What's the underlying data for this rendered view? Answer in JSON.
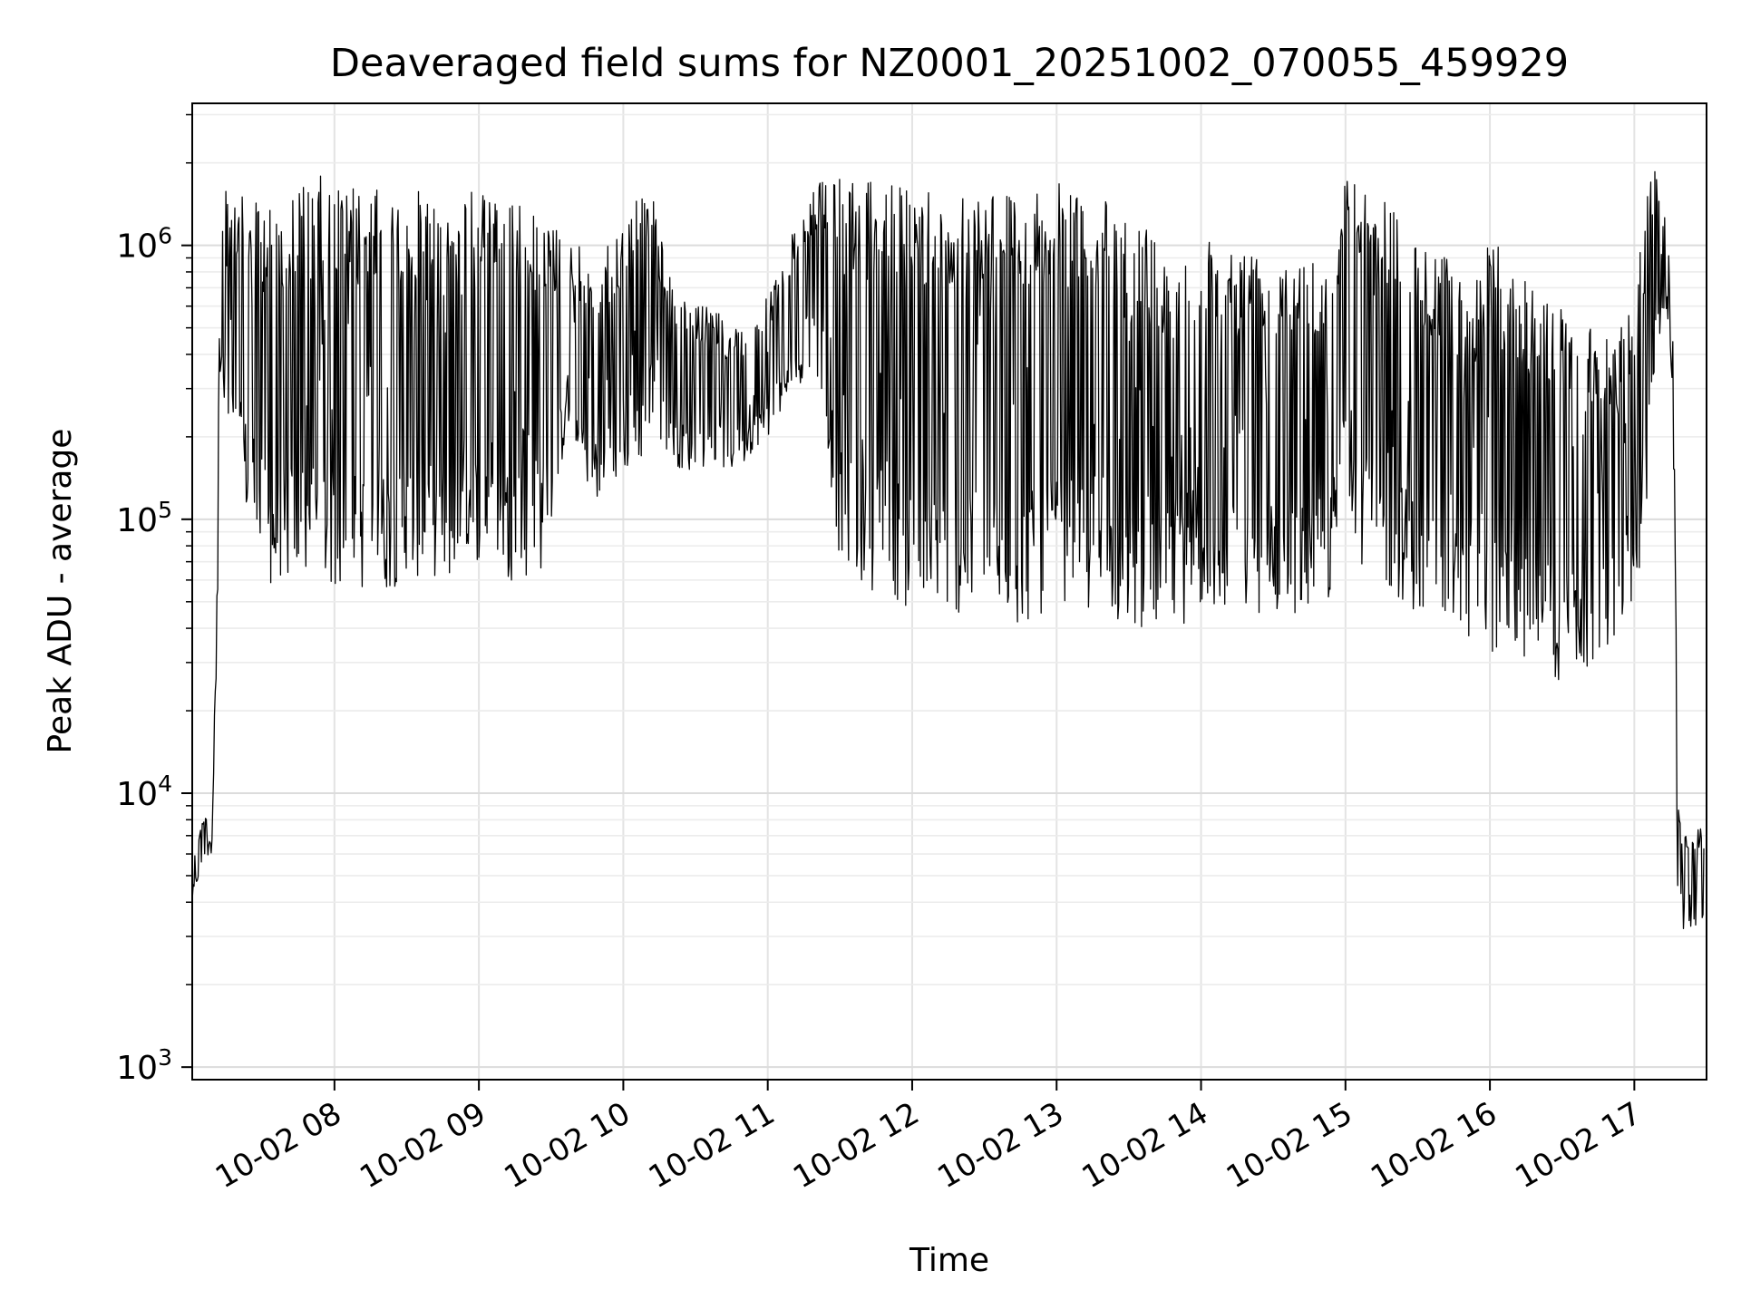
{
  "chart_data": {
    "type": "line",
    "title": "Deaveraged field sums for NZ0001_20251002_070055_459929",
    "xlabel": "Time",
    "ylabel": "Peak ADU - average",
    "yscale": "log",
    "ylim": [
      900,
      3300000
    ],
    "xlim": [
      "2025-10-02 07:00:55",
      "2025-10-02 17:30:00"
    ],
    "grid": true,
    "legend": "none",
    "line_color": "#000000",
    "x_tick_labels": [
      "10-02 08",
      "10-02 09",
      "10-02 10",
      "10-02 11",
      "10-02 12",
      "10-02 13",
      "10-02 14",
      "10-02 15",
      "10-02 16",
      "10-02 17"
    ],
    "x_tick_values": [
      "2025-10-02 08:00",
      "2025-10-02 09:00",
      "2025-10-02 10:00",
      "2025-10-02 11:00",
      "2025-10-02 12:00",
      "2025-10-02 13:00",
      "2025-10-02 14:00",
      "2025-10-02 15:00",
      "2025-10-02 16:00",
      "2025-10-02 17:00"
    ],
    "y_tick_labels": [
      {
        "base": "10",
        "exp": "3",
        "value": 1000
      },
      {
        "base": "10",
        "exp": "4",
        "value": 10000
      },
      {
        "base": "10",
        "exp": "5",
        "value": 100000
      },
      {
        "base": "10",
        "exp": "6",
        "value": 1000000
      }
    ],
    "series": [
      {
        "x": [
          "2025-10-02 07:01",
          "2025-10-02 07:05",
          "2025-10-02 07:09",
          "2025-10-02 07:11",
          "2025-10-02 07:12",
          "2025-10-02 07:13",
          "2025-10-02 07:15",
          "2025-10-02 07:18",
          "2025-10-02 07:22",
          "2025-10-02 07:26",
          "2025-10-02 07:30",
          "2025-10-02 07:36",
          "2025-10-02 07:42",
          "2025-10-02 07:48",
          "2025-10-02 07:54",
          "2025-10-02 08:00",
          "2025-10-02 08:06",
          "2025-10-02 08:12",
          "2025-10-02 08:18",
          "2025-10-02 08:24",
          "2025-10-02 08:30",
          "2025-10-02 08:36",
          "2025-10-02 08:42",
          "2025-10-02 08:48",
          "2025-10-02 08:54",
          "2025-10-02 09:00",
          "2025-10-02 09:06",
          "2025-10-02 09:12",
          "2025-10-02 09:18",
          "2025-10-02 09:24",
          "2025-10-02 09:30",
          "2025-10-02 09:36",
          "2025-10-02 09:42",
          "2025-10-02 09:48",
          "2025-10-02 09:54",
          "2025-10-02 10:00",
          "2025-10-02 10:06",
          "2025-10-02 10:12",
          "2025-10-02 10:18",
          "2025-10-02 10:24",
          "2025-10-02 10:30",
          "2025-10-02 10:36",
          "2025-10-02 10:42",
          "2025-10-02 10:48",
          "2025-10-02 10:54",
          "2025-10-02 11:00",
          "2025-10-02 11:06",
          "2025-10-02 11:12",
          "2025-10-02 11:18",
          "2025-10-02 11:24",
          "2025-10-02 11:30",
          "2025-10-02 11:36",
          "2025-10-02 11:42",
          "2025-10-02 11:48",
          "2025-10-02 11:54",
          "2025-10-02 12:00",
          "2025-10-02 12:06",
          "2025-10-02 12:12",
          "2025-10-02 12:18",
          "2025-10-02 12:24",
          "2025-10-02 12:30",
          "2025-10-02 12:36",
          "2025-10-02 12:42",
          "2025-10-02 12:48",
          "2025-10-02 12:54",
          "2025-10-02 13:00",
          "2025-10-02 13:06",
          "2025-10-02 13:12",
          "2025-10-02 13:18",
          "2025-10-02 13:24",
          "2025-10-02 13:30",
          "2025-10-02 13:36",
          "2025-10-02 13:42",
          "2025-10-02 13:48",
          "2025-10-02 13:54",
          "2025-10-02 14:00",
          "2025-10-02 14:06",
          "2025-10-02 14:12",
          "2025-10-02 14:18",
          "2025-10-02 14:24",
          "2025-10-02 14:30",
          "2025-10-02 14:36",
          "2025-10-02 14:42",
          "2025-10-02 14:48",
          "2025-10-02 14:54",
          "2025-10-02 15:00",
          "2025-10-02 15:06",
          "2025-10-02 15:12",
          "2025-10-02 15:18",
          "2025-10-02 15:24",
          "2025-10-02 15:30",
          "2025-10-02 15:36",
          "2025-10-02 15:42",
          "2025-10-02 15:48",
          "2025-10-02 15:54",
          "2025-10-02 16:00",
          "2025-10-02 16:06",
          "2025-10-02 16:12",
          "2025-10-02 16:18",
          "2025-10-02 16:24",
          "2025-10-02 16:30",
          "2025-10-02 16:36",
          "2025-10-02 16:42",
          "2025-10-02 16:48",
          "2025-10-02 16:54",
          "2025-10-02 17:00",
          "2025-10-02 17:04",
          "2025-10-02 17:08",
          "2025-10-02 17:12",
          "2025-10-02 17:14",
          "2025-10-02 17:16",
          "2025-10-02 17:18",
          "2025-10-02 17:20",
          "2025-10-02 17:24",
          "2025-10-02 17:29"
        ],
        "hi": [
          6000,
          8000,
          9000,
          35000,
          400000,
          1200000,
          2200000,
          1600000,
          1500000,
          1400000,
          1500000,
          1500000,
          1600000,
          1700000,
          1800000,
          1700000,
          1700000,
          1600000,
          1600000,
          1500000,
          1500000,
          1600000,
          1500000,
          1600000,
          1500000,
          1700000,
          1800000,
          1500000,
          1400000,
          1300000,
          1200000,
          1100000,
          1000000,
          900000,
          1000000,
          1200000,
          1600000,
          1800000,
          800000,
          700000,
          600000,
          600000,
          550000,
          500000,
          550000,
          700000,
          900000,
          1200000,
          1500000,
          1900000,
          1800000,
          1700000,
          1700000,
          1700000,
          1700000,
          1600000,
          1700000,
          1600000,
          1600000,
          1700000,
          1700000,
          1700000,
          1600000,
          1600000,
          1700000,
          1700000,
          1600000,
          1700000,
          1700000,
          1200000,
          1300000,
          1200000,
          1100000,
          1000000,
          1000000,
          1100000,
          1100000,
          1000000,
          1000000,
          1000000,
          1000000,
          1000000,
          1000000,
          1000000,
          1000000,
          1800000,
          1700000,
          1600000,
          1500000,
          1400000,
          1100000,
          1000000,
          900000,
          800000,
          800000,
          1200000,
          900000,
          800000,
          700000,
          650000,
          600000,
          500000,
          500000,
          450000,
          500000,
          700000,
          1200000,
          2300000,
          1400000,
          1200000,
          600000,
          12000,
          7000,
          7500,
          7500
        ],
        "lo": [
          4000,
          5500,
          6000,
          30000,
          100000,
          300000,
          200000,
          150000,
          120000,
          80000,
          60000,
          55000,
          60000,
          60000,
          60000,
          55000,
          55000,
          55000,
          55000,
          55000,
          65000,
          60000,
          60000,
          60000,
          60000,
          70000,
          80000,
          60000,
          60000,
          60000,
          80000,
          200000,
          150000,
          120000,
          100000,
          150000,
          150000,
          200000,
          180000,
          150000,
          150000,
          160000,
          150000,
          150000,
          180000,
          200000,
          250000,
          300000,
          350000,
          200000,
          70000,
          60000,
          55000,
          55000,
          50000,
          45000,
          45000,
          45000,
          45000,
          45000,
          45000,
          42000,
          40000,
          42000,
          45000,
          50000,
          50000,
          45000,
          45000,
          42000,
          40000,
          40000,
          40000,
          40000,
          42000,
          45000,
          45000,
          45000,
          45000,
          45000,
          45000,
          45000,
          45000,
          50000,
          50000,
          150000,
          70000,
          60000,
          55000,
          50000,
          45000,
          40000,
          40000,
          38000,
          35000,
          33000,
          32000,
          30000,
          28000,
          26000,
          25000,
          27000,
          28000,
          30000,
          35000,
          50000,
          80000,
          300000,
          600000,
          500000,
          250000,
          4000,
          3000,
          3000,
          3500
        ]
      }
    ]
  }
}
